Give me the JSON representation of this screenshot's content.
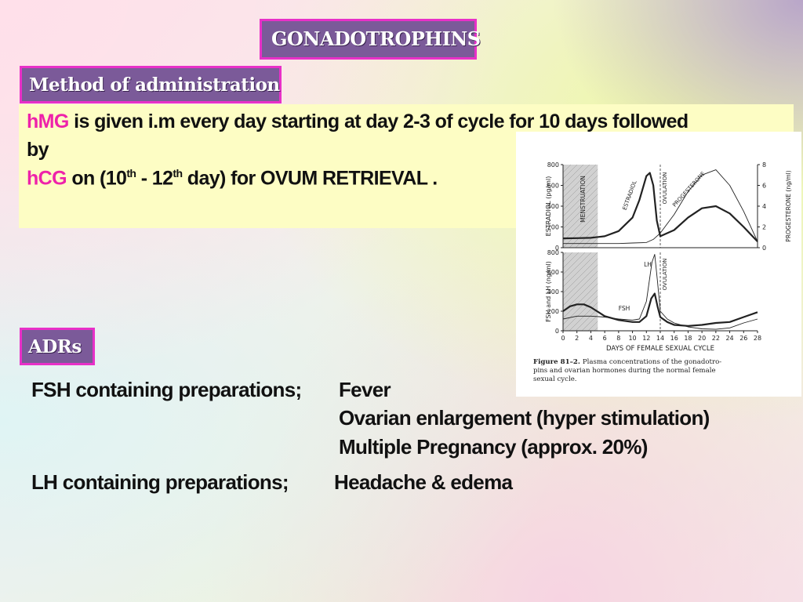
{
  "header": {
    "title": "GONADOTROPHINS"
  },
  "method": {
    "heading": "Method of administration",
    "hmg": "hMG",
    "line1_rest": "is given i.m  every day starting at day 2-3 of cycle  for 10 days followed",
    "line2": "by",
    "hcg": "hCG",
    "line3_a": "on (10",
    "line3_sup1": "th",
    "line3_b": " - 12",
    "line3_sup2": "th",
    "line3_c": " day) for OVUM RETRIEVAL ."
  },
  "adrs": {
    "heading": "ADRs",
    "fsh_label": "FSH containing preparations;",
    "fsh_effects": [
      "Fever",
      "Ovarian enlargement (hyper stimulation)",
      "Multiple Pregnancy (approx. 20%)"
    ],
    "lh_label": "LH containing preparations;",
    "lh_effects": "Headache  &  edema"
  },
  "figure": {
    "caption_bold": "Figure 81–2.",
    "caption_text": "Plasma concentrations of the gonadotropins and ovarian hormones during the normal female sexual cycle.",
    "colors": {
      "line": "#222222",
      "shading": "#9a9a9a"
    }
  },
  "chart_data": [
    {
      "type": "line",
      "xlabel": "DAYS OF FEMALE SEXUAL CYCLE",
      "ylabel": "ESTRADIOL (pg/ml)",
      "y2label": "PROGESTERONE (ng/ml)",
      "xlim": [
        0,
        28
      ],
      "ylim": [
        0,
        800
      ],
      "y2lim": [
        0,
        8
      ],
      "yticks": [
        0,
        200,
        400,
        600,
        800
      ],
      "y2ticks": [
        0,
        2,
        4,
        6,
        8
      ],
      "annotations": [
        "MENSTRUATION",
        "OVULATION",
        "ESTRADIOL",
        "PROGESTERONE"
      ],
      "shaded_range": [
        0,
        5
      ],
      "vline_x": 14,
      "series": [
        {
          "name": "ESTRADIOL",
          "axis": "left",
          "style": "thick",
          "x": [
            0,
            2,
            4,
            6,
            8,
            10,
            11,
            12,
            12.5,
            13,
            13.5,
            14,
            16,
            18,
            20,
            22,
            24,
            26,
            28
          ],
          "y": [
            90,
            92,
            95,
            110,
            160,
            290,
            460,
            690,
            720,
            600,
            260,
            110,
            170,
            290,
            380,
            400,
            330,
            200,
            60
          ]
        },
        {
          "name": "PROGESTERONE",
          "axis": "right",
          "style": "thin",
          "x": [
            0,
            2,
            4,
            6,
            8,
            10,
            12,
            13,
            14,
            16,
            18,
            20,
            22,
            24,
            26,
            28
          ],
          "y": [
            0.4,
            0.4,
            0.4,
            0.4,
            0.4,
            0.45,
            0.5,
            0.8,
            1.4,
            3.2,
            5.4,
            7.0,
            7.5,
            6.0,
            3.5,
            0.6
          ]
        }
      ]
    },
    {
      "type": "line",
      "xlabel": "DAYS OF FEMALE SEXUAL CYCLE",
      "ylabel": "FSH and LH (ng/ml)",
      "xlim": [
        0,
        28
      ],
      "ylim": [
        0,
        800
      ],
      "xticks": [
        0,
        2,
        4,
        6,
        8,
        10,
        12,
        14,
        16,
        18,
        20,
        22,
        24,
        26,
        28
      ],
      "yticks": [
        0,
        200,
        400,
        600,
        800
      ],
      "annotations": [
        "LH",
        "FSH",
        "OVULATION"
      ],
      "shaded_range": [
        0,
        5
      ],
      "vline_x": 14,
      "series": [
        {
          "name": "LH",
          "style": "thin",
          "x": [
            0,
            2,
            4,
            6,
            8,
            10,
            11,
            12,
            12.8,
            13.2,
            13.6,
            14,
            15,
            16,
            18,
            20,
            22,
            24,
            26,
            28
          ],
          "y": [
            120,
            150,
            150,
            140,
            120,
            110,
            120,
            300,
            700,
            780,
            500,
            200,
            120,
            80,
            40,
            20,
            15,
            30,
            80,
            120
          ]
        },
        {
          "name": "FSH",
          "style": "thick",
          "x": [
            0,
            1,
            2,
            3,
            4,
            6,
            8,
            10,
            11,
            12,
            12.7,
            13.2,
            13.6,
            14,
            15,
            16,
            18,
            20,
            22,
            24,
            26,
            28
          ],
          "y": [
            200,
            250,
            270,
            270,
            240,
            150,
            110,
            90,
            90,
            150,
            330,
            380,
            250,
            140,
            90,
            60,
            50,
            60,
            80,
            90,
            140,
            190
          ]
        }
      ]
    }
  ]
}
